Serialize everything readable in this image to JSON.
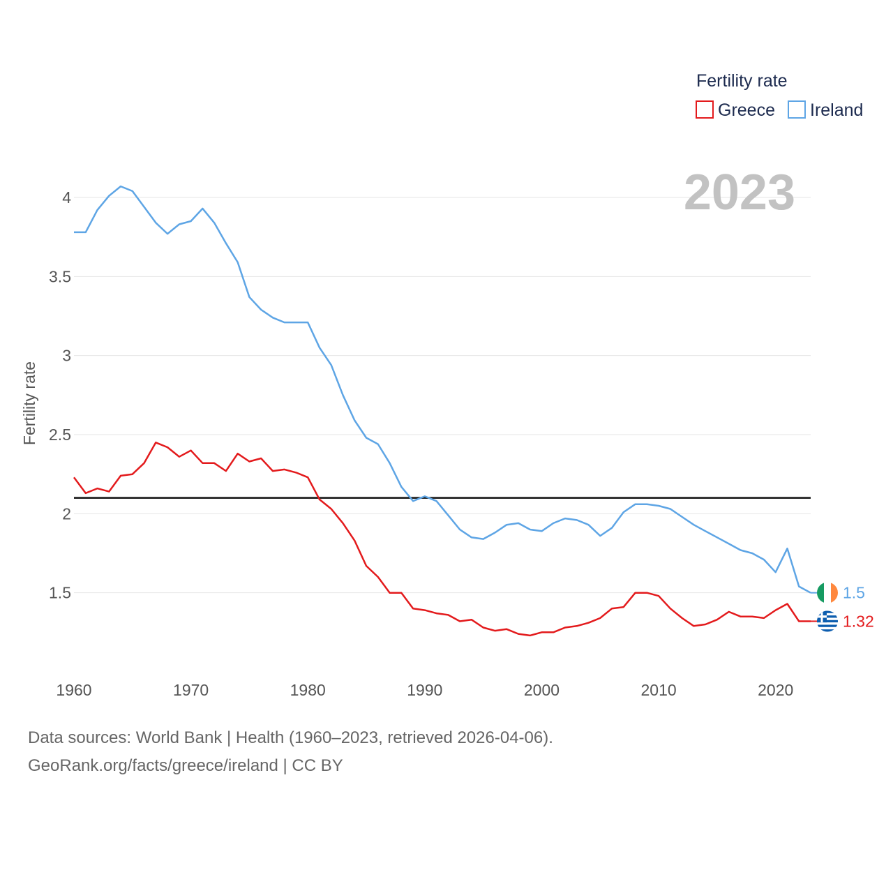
{
  "chart_data": {
    "type": "line",
    "ylabel": "Fertility rate",
    "current_year": "2023",
    "xlim": [
      1960,
      2023
    ],
    "ylim": [
      1.0,
      4.15
    ],
    "x_ticks": [
      1960,
      1970,
      1980,
      1990,
      2000,
      2010,
      2020
    ],
    "y_ticks": [
      1.5,
      2,
      2.5,
      3,
      3.5,
      4
    ],
    "reference_line": 2.1,
    "legend": {
      "title": "Fertility rate",
      "position": "top-right"
    },
    "x": [
      1960,
      1961,
      1962,
      1963,
      1964,
      1965,
      1966,
      1967,
      1968,
      1969,
      1970,
      1971,
      1972,
      1973,
      1974,
      1975,
      1976,
      1977,
      1978,
      1979,
      1980,
      1981,
      1982,
      1983,
      1984,
      1985,
      1986,
      1987,
      1988,
      1989,
      1990,
      1991,
      1992,
      1993,
      1994,
      1995,
      1996,
      1997,
      1998,
      1999,
      2000,
      2001,
      2002,
      2003,
      2004,
      2005,
      2006,
      2007,
      2008,
      2009,
      2010,
      2011,
      2012,
      2013,
      2014,
      2015,
      2016,
      2017,
      2018,
      2019,
      2020,
      2021,
      2022,
      2023
    ],
    "series": [
      {
        "name": "Greece",
        "color": "#e31a1c",
        "end_label": "1.32",
        "values": [
          2.23,
          2.13,
          2.16,
          2.14,
          2.24,
          2.25,
          2.32,
          2.45,
          2.42,
          2.36,
          2.4,
          2.32,
          2.32,
          2.27,
          2.38,
          2.33,
          2.35,
          2.27,
          2.28,
          2.26,
          2.23,
          2.09,
          2.03,
          1.94,
          1.83,
          1.67,
          1.6,
          1.5,
          1.5,
          1.4,
          1.39,
          1.37,
          1.36,
          1.32,
          1.33,
          1.28,
          1.26,
          1.27,
          1.24,
          1.23,
          1.25,
          1.25,
          1.28,
          1.29,
          1.31,
          1.34,
          1.4,
          1.41,
          1.5,
          1.5,
          1.48,
          1.4,
          1.34,
          1.29,
          1.3,
          1.33,
          1.38,
          1.35,
          1.35,
          1.34,
          1.39,
          1.43,
          1.32,
          1.32
        ]
      },
      {
        "name": "Ireland",
        "color": "#5ea5e5",
        "end_label": "1.5",
        "values": [
          3.78,
          3.78,
          3.92,
          4.01,
          4.07,
          4.04,
          3.94,
          3.84,
          3.77,
          3.83,
          3.85,
          3.93,
          3.84,
          3.71,
          3.59,
          3.37,
          3.29,
          3.24,
          3.21,
          3.21,
          3.21,
          3.05,
          2.94,
          2.75,
          2.59,
          2.48,
          2.44,
          2.32,
          2.17,
          2.08,
          2.11,
          2.08,
          1.99,
          1.9,
          1.85,
          1.84,
          1.88,
          1.93,
          1.94,
          1.9,
          1.89,
          1.94,
          1.97,
          1.96,
          1.93,
          1.86,
          1.91,
          2.01,
          2.06,
          2.06,
          2.05,
          2.03,
          1.98,
          1.93,
          1.89,
          1.85,
          1.81,
          1.77,
          1.75,
          1.71,
          1.63,
          1.78,
          1.54,
          1.5
        ]
      }
    ]
  },
  "footer": {
    "line1": "Data sources: World Bank | Health (1960–2023, retrieved 2026-04-06).",
    "line2": "GeoRank.org/facts/greece/ireland | CC BY"
  },
  "flags": {
    "ireland": [
      "#169b62",
      "#ffffff",
      "#ff883e"
    ],
    "greece": [
      "#0d5eaf",
      "#ffffff"
    ]
  }
}
